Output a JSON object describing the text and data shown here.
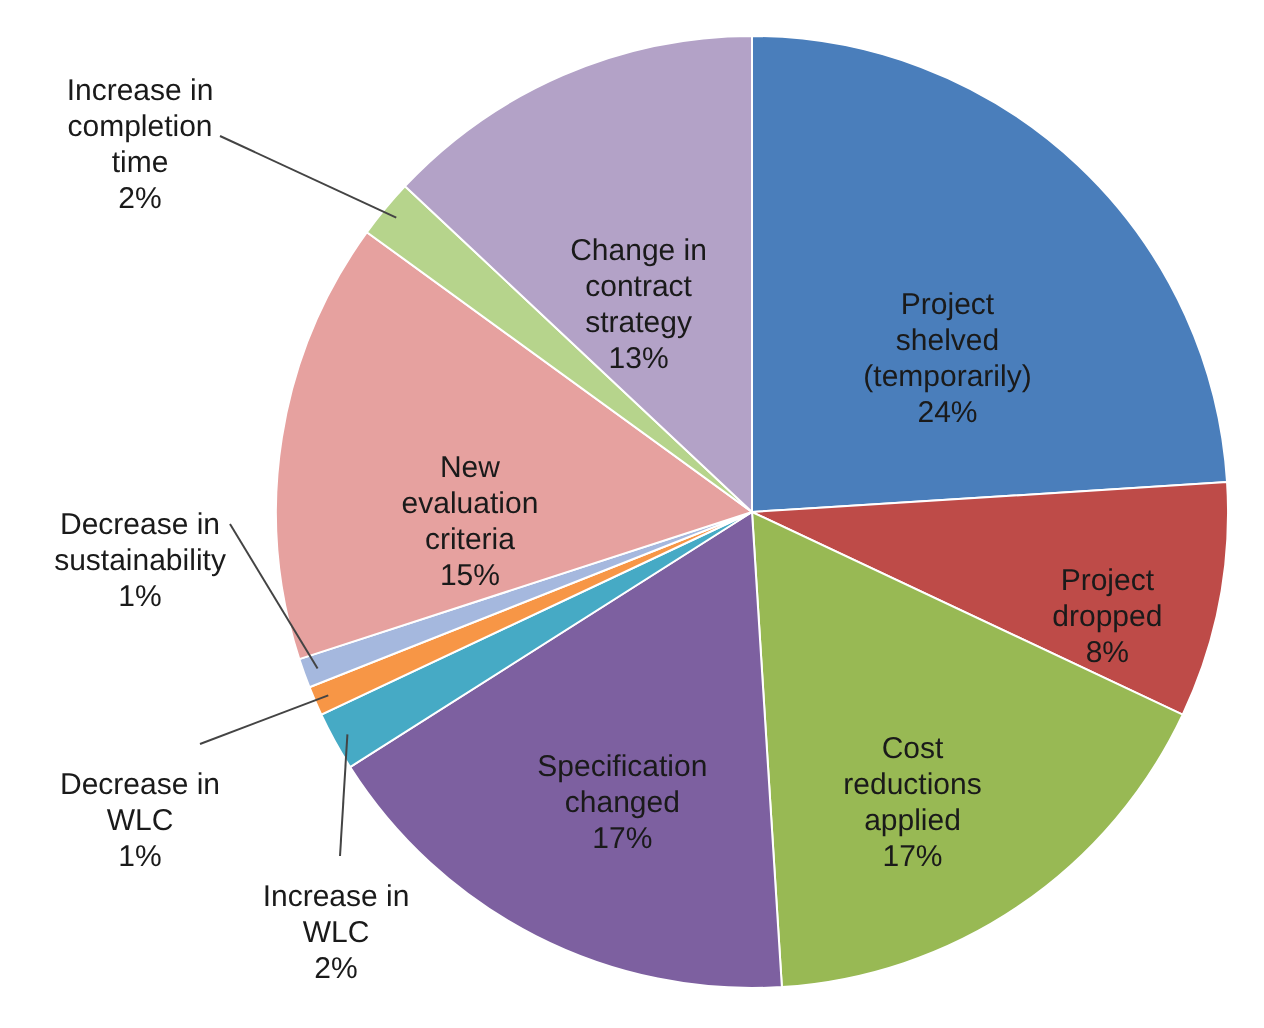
{
  "chart_data": {
    "type": "pie",
    "categories": [
      "Project shelved (temporarily)",
      "Project dropped",
      "Cost reductions applied",
      "Specification changed",
      "Increase in WLC",
      "Decrease in WLC",
      "Decrease in sustainability",
      "New evaluation criteria",
      "Increase in completion time",
      "Change in contract strategy"
    ],
    "values": [
      24,
      8,
      17,
      17,
      2,
      1,
      1,
      15,
      2,
      13
    ],
    "value_labels": [
      "24%",
      "8%",
      "17%",
      "17%",
      "2%",
      "1%",
      "1%",
      "15%",
      "2%",
      "13%"
    ],
    "colors": [
      "#4a7ebb",
      "#be4b48",
      "#98b954",
      "#7d60a0",
      "#46aac5",
      "#f79646",
      "#a5b8de",
      "#e6a19f",
      "#b6d48c",
      "#b3a2c7"
    ]
  }
}
